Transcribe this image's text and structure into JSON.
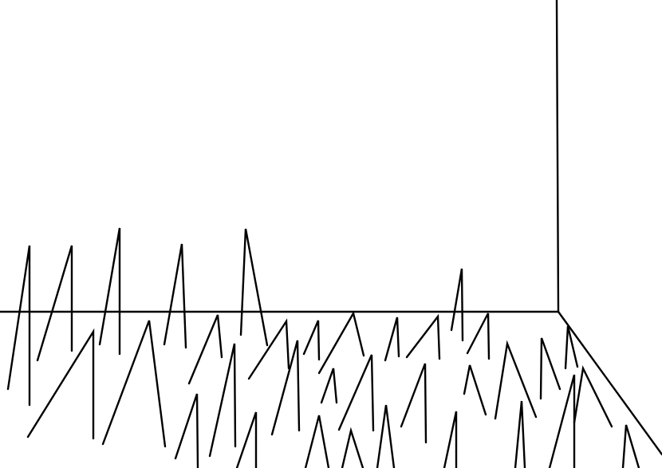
{
  "scene": {
    "background_color": "#ffffff",
    "stroke_color": "#000000"
  }
}
